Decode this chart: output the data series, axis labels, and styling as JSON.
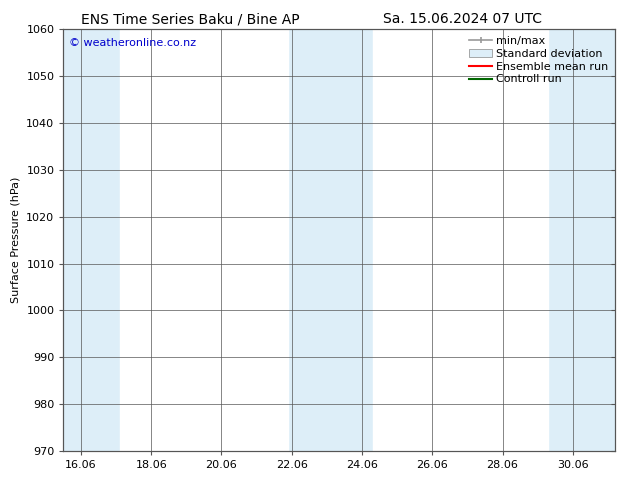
{
  "title_left": "ENS Time Series Baku / Bine AP",
  "title_right": "Sa. 15.06.2024 07 UTC",
  "ylabel": "Surface Pressure (hPa)",
  "ylim": [
    970,
    1060
  ],
  "yticks": [
    970,
    980,
    990,
    1000,
    1010,
    1020,
    1030,
    1040,
    1050,
    1060
  ],
  "xlim_start": 15.5,
  "xlim_end": 31.2,
  "xtick_labels": [
    "16.06",
    "18.06",
    "20.06",
    "22.06",
    "24.06",
    "26.06",
    "28.06",
    "30.06"
  ],
  "xtick_positions": [
    16.0,
    18.0,
    20.0,
    22.0,
    24.0,
    26.0,
    28.0,
    30.0
  ],
  "watermark": "© weatheronline.co.nz",
  "watermark_color": "#0000cc",
  "bg_color": "#ffffff",
  "plot_bg_color": "#ddeef8",
  "shaded_bands": [
    {
      "x_start": 15.5,
      "x_end": 17.1,
      "color": "#ddeef8"
    },
    {
      "x_start": 21.9,
      "x_end": 24.3,
      "color": "#ddeef8"
    },
    {
      "x_start": 29.3,
      "x_end": 31.2,
      "color": "#ddeef8"
    }
  ],
  "white_bands": [
    {
      "x_start": 17.1,
      "x_end": 21.9
    },
    {
      "x_start": 24.3,
      "x_end": 29.3
    }
  ],
  "legend_labels": [
    "min/max",
    "Standard deviation",
    "Ensemble mean run",
    "Controll run"
  ],
  "legend_colors": [
    "#999999",
    "#ddeef8",
    "#ff0000",
    "#006600"
  ],
  "font_size_title": 10,
  "font_size_axis": 8,
  "font_size_legend": 8,
  "font_size_watermark": 8
}
